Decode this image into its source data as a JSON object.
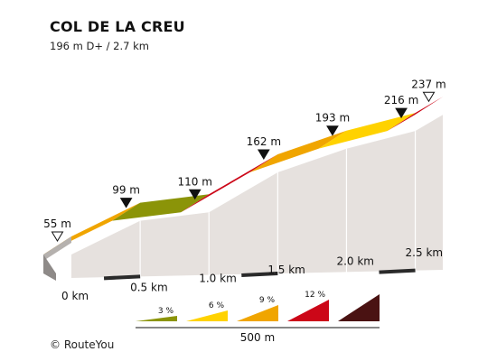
{
  "header": {
    "title": "COL DE LA CREU",
    "subtitle": "196 m D+ / 2.7 km"
  },
  "footer": {
    "credit": "© RouteYou"
  },
  "colors": {
    "gradient_3": "#8b9408",
    "gradient_6": "#ffd200",
    "gradient_9_lower": "#f0a500",
    "gradient_9_upper": "#cc0718",
    "gradient_12": "#4a1212",
    "wall": "#e6e1de",
    "side": "#b5b1ae",
    "base": "#2a2a2a"
  },
  "chart_data": {
    "type": "area",
    "title": "COL DE LA CREU",
    "subtitle": "196 m D+ / 2.7 km",
    "x_unit": "km",
    "y_unit": "m",
    "points": [
      {
        "x": 0.0,
        "y": 55,
        "label": "55 m",
        "marker": "start"
      },
      {
        "x": 0.5,
        "y": 99,
        "label": "99 m",
        "marker": "filled"
      },
      {
        "x": 1.0,
        "y": 110,
        "label": "110 m",
        "marker": "filled"
      },
      {
        "x": 1.5,
        "y": 162,
        "label": "162 m",
        "marker": "filled"
      },
      {
        "x": 2.0,
        "y": 193,
        "label": "193 m",
        "marker": "filled"
      },
      {
        "x": 2.5,
        "y": 216,
        "label": "216 m",
        "marker": "filled"
      },
      {
        "x": 2.7,
        "y": 237,
        "label": "237 m",
        "marker": "end"
      }
    ],
    "segments": [
      {
        "from": 0.0,
        "to": 0.5,
        "color": "#f0a500"
      },
      {
        "from": 0.5,
        "to": 1.0,
        "color": "#8b9408"
      },
      {
        "from": 1.0,
        "to": 1.5,
        "color": "#cc0718"
      },
      {
        "from": 1.5,
        "to": 2.0,
        "color": "#f0a500"
      },
      {
        "from": 2.0,
        "to": 2.5,
        "color": "#ffd200"
      },
      {
        "from": 2.5,
        "to": 2.7,
        "color": "#cc0718"
      }
    ],
    "x_ticks": [
      {
        "x": 0.0,
        "label": "0 km"
      },
      {
        "x": 0.5,
        "label": "0.5 km"
      },
      {
        "x": 1.0,
        "label": "1.0 km"
      },
      {
        "x": 1.5,
        "label": "1.5 km"
      },
      {
        "x": 2.0,
        "label": "2.0 km"
      },
      {
        "x": 2.5,
        "label": "2.5 km"
      }
    ],
    "legend": {
      "items": [
        {
          "label": "3 %",
          "color": "#8b9408"
        },
        {
          "label": "6 %",
          "color": "#ffd200"
        },
        {
          "label": "9 %",
          "color": "#f0a500"
        },
        {
          "label": "12 %",
          "color": "#cc0718"
        },
        {
          "label": "",
          "color": "#4a1212"
        }
      ],
      "scale_label": "500 m"
    }
  }
}
